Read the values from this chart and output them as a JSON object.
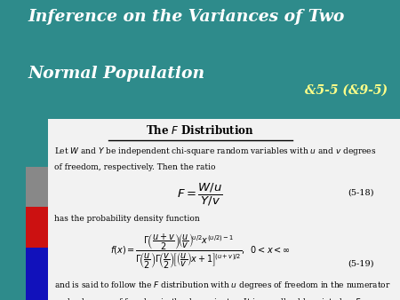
{
  "title_line1": "Inference on the Variances of Two",
  "title_line2": "Normal Population",
  "section_ref": "&5-5 (&9-5)",
  "header_bg": "#2E8B8B",
  "header_text_color": "#FFFFFF",
  "content_bg": "#F2F2F2",
  "box_title": "The  F  Distribution",
  "eq_label1": "(5-18)",
  "eq_label2": "(5-19)",
  "figsize": [
    4.5,
    3.38
  ],
  "dpi": 100
}
